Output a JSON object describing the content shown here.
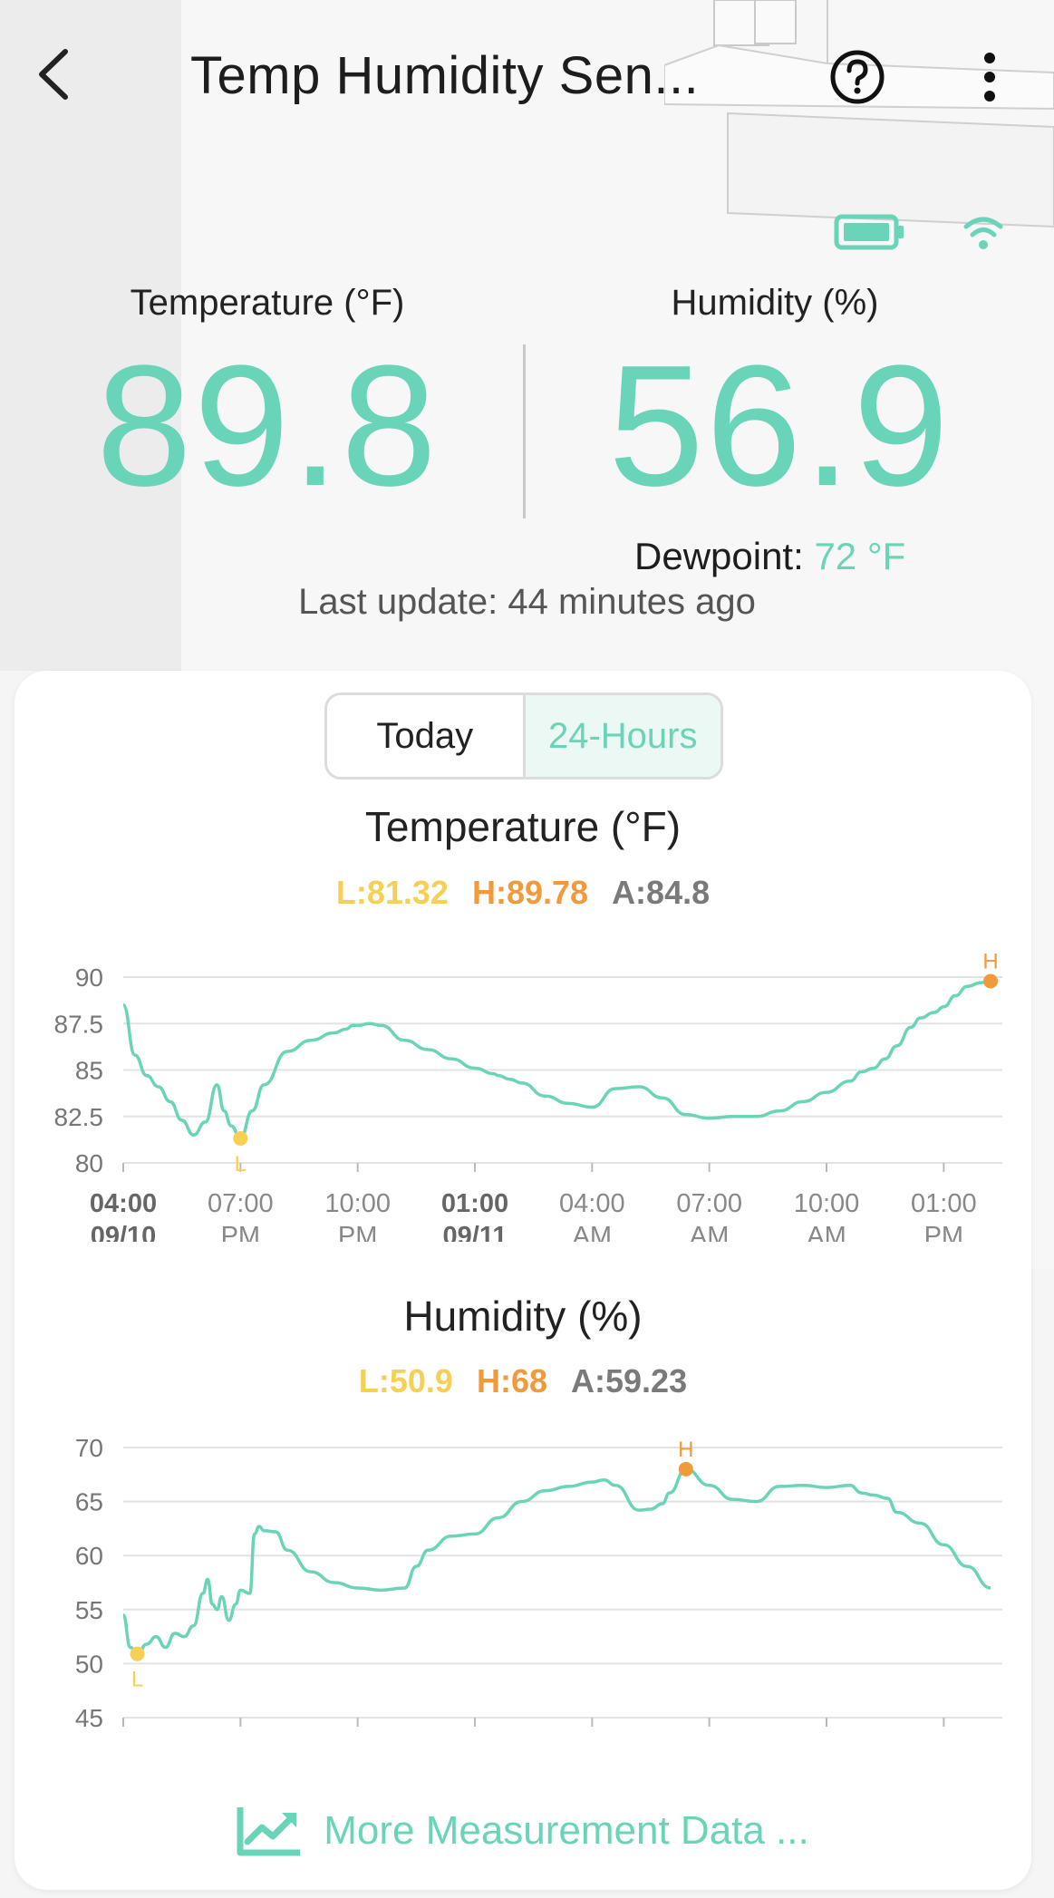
{
  "header": {
    "title": "Temp Humidity Sen...",
    "back_icon": "chevron-left-icon",
    "help_icon": "question-circle-icon",
    "more_icon": "more-vertical-icon"
  },
  "status": {
    "battery_icon": "battery-icon",
    "wifi_icon": "wifi-icon"
  },
  "readings": {
    "temperature": {
      "label": "Temperature (°F)",
      "value": "89.8"
    },
    "humidity": {
      "label": "Humidity (%)",
      "value": "56.9"
    },
    "dewpoint_label": "Dewpoint:",
    "dewpoint_value": "72 °F",
    "last_update": "Last update: 44 minutes ago"
  },
  "range_tabs": {
    "today": "Today",
    "hours24": "24-Hours",
    "selected": "24-Hours"
  },
  "colors": {
    "accent": "#6ad4b8",
    "low": "#f5d055",
    "high": "#f09a3c",
    "avg": "#7a7a7a"
  },
  "chart_data": [
    {
      "type": "line",
      "title": "Temperature (°F)",
      "stats": {
        "low": "L:81.32",
        "high": "H:89.78",
        "avg": "A:84.8"
      },
      "low_marker": "L",
      "high_marker": "H",
      "ylim": [
        80,
        90
      ],
      "y_ticks": [
        "90",
        "87.5",
        "85",
        "82.5",
        "80"
      ],
      "x_ticks": [
        {
          "top": "04:00",
          "bottom": "09/10",
          "bold": true
        },
        {
          "top": "07:00",
          "bottom": "PM",
          "bold": false
        },
        {
          "top": "10:00",
          "bottom": "PM",
          "bold": false
        },
        {
          "top": "01:00",
          "bottom": "09/11",
          "bold": true
        },
        {
          "top": "04:00",
          "bottom": "AM",
          "bold": false
        },
        {
          "top": "07:00",
          "bottom": "AM",
          "bold": false
        },
        {
          "top": "10:00",
          "bottom": "AM",
          "bold": false
        },
        {
          "top": "01:00",
          "bottom": "PM",
          "bold": false
        }
      ],
      "x_hours": [
        0,
        0.5,
        1,
        1.5,
        2,
        2.5,
        3,
        3.5,
        4,
        4.3,
        4.6,
        5,
        5.5,
        6,
        7,
        8,
        9,
        9.5,
        9.8,
        10,
        10.5,
        11,
        12,
        13,
        14,
        15,
        15.8,
        16,
        16.5,
        17,
        18,
        19,
        20,
        21,
        22,
        23,
        24,
        25,
        26,
        27,
        28,
        29,
        30,
        31,
        31.5,
        32,
        32.5,
        33,
        33.6,
        34,
        34.6,
        35,
        35.5,
        36,
        36.6,
        37
      ],
      "values": [
        88.5,
        85.8,
        84.7,
        84.1,
        83.3,
        82.3,
        81.5,
        82.2,
        84.2,
        82.8,
        82.0,
        81.32,
        82.8,
        84.2,
        86.0,
        86.6,
        87.0,
        87.2,
        87.4,
        87.4,
        87.5,
        87.4,
        86.6,
        86.1,
        85.6,
        85.1,
        84.8,
        84.7,
        84.5,
        84.3,
        83.6,
        83.2,
        83.0,
        84.0,
        84.1,
        83.5,
        82.6,
        82.4,
        82.5,
        82.5,
        82.8,
        83.3,
        83.8,
        84.4,
        84.9,
        85.1,
        85.6,
        86.3,
        87.3,
        87.8,
        88.1,
        88.4,
        89.0,
        89.5,
        89.7,
        89.78
      ],
      "low_index": 11,
      "high_index": 55
    },
    {
      "type": "line",
      "title": "Humidity (%)",
      "stats": {
        "low": "L:50.9",
        "high": "H:68",
        "avg": "A:59.23"
      },
      "low_marker": "L",
      "high_marker": "H",
      "ylim": [
        45,
        70
      ],
      "y_ticks": [
        "70",
        "65",
        "60",
        "55",
        "50",
        "45"
      ],
      "x_ticks": [
        {
          "top": "04:00",
          "bottom": "09/10",
          "bold": true
        },
        {
          "top": "07:00",
          "bottom": "PM",
          "bold": false
        },
        {
          "top": "10:00",
          "bottom": "PM",
          "bold": false
        },
        {
          "top": "01:00",
          "bottom": "09/11",
          "bold": true
        },
        {
          "top": "04:00",
          "bottom": "AM",
          "bold": false
        },
        {
          "top": "07:00",
          "bottom": "AM",
          "bold": false
        },
        {
          "top": "10:00",
          "bottom": "AM",
          "bold": false
        },
        {
          "top": "01:00",
          "bottom": "PM",
          "bold": false
        }
      ],
      "x_hours": [
        0,
        0.3,
        0.6,
        1.0,
        1.4,
        1.8,
        2.2,
        2.6,
        3.0,
        3.4,
        3.6,
        3.8,
        4.0,
        4.2,
        4.5,
        4.8,
        5.0,
        5.4,
        5.6,
        5.8,
        6.0,
        6.5,
        7,
        8,
        9,
        10,
        11,
        12,
        12.5,
        13,
        14,
        15,
        16,
        17,
        18,
        19,
        20,
        20.5,
        21,
        22,
        22.5,
        23,
        23.3,
        24,
        25,
        26,
        27,
        28,
        29,
        30,
        31,
        31.5,
        32,
        32.6,
        33,
        34,
        35,
        36,
        37
      ],
      "values": [
        54.5,
        51.5,
        50.9,
        51.8,
        52.5,
        51.5,
        52.8,
        52.5,
        53.5,
        56.5,
        57.8,
        55.5,
        55.0,
        56.2,
        54.0,
        55.5,
        56.8,
        56.5,
        62.0,
        62.7,
        62.3,
        62.2,
        60.5,
        58.5,
        57.5,
        57.0,
        56.8,
        57.0,
        59.0,
        60.5,
        61.8,
        62.0,
        63.5,
        65.0,
        66.0,
        66.4,
        66.8,
        67.0,
        66.5,
        64.2,
        64.3,
        64.8,
        65.8,
        68.0,
        66.5,
        65.2,
        65.0,
        66.4,
        66.5,
        66.3,
        66.5,
        65.8,
        65.6,
        65.3,
        64.0,
        63.0,
        61.0,
        59.0,
        57.0
      ],
      "low_index": 2,
      "high_index": 43
    }
  ],
  "more_link": {
    "label": "More Measurement Data ...",
    "icon": "chart-trend-icon"
  }
}
